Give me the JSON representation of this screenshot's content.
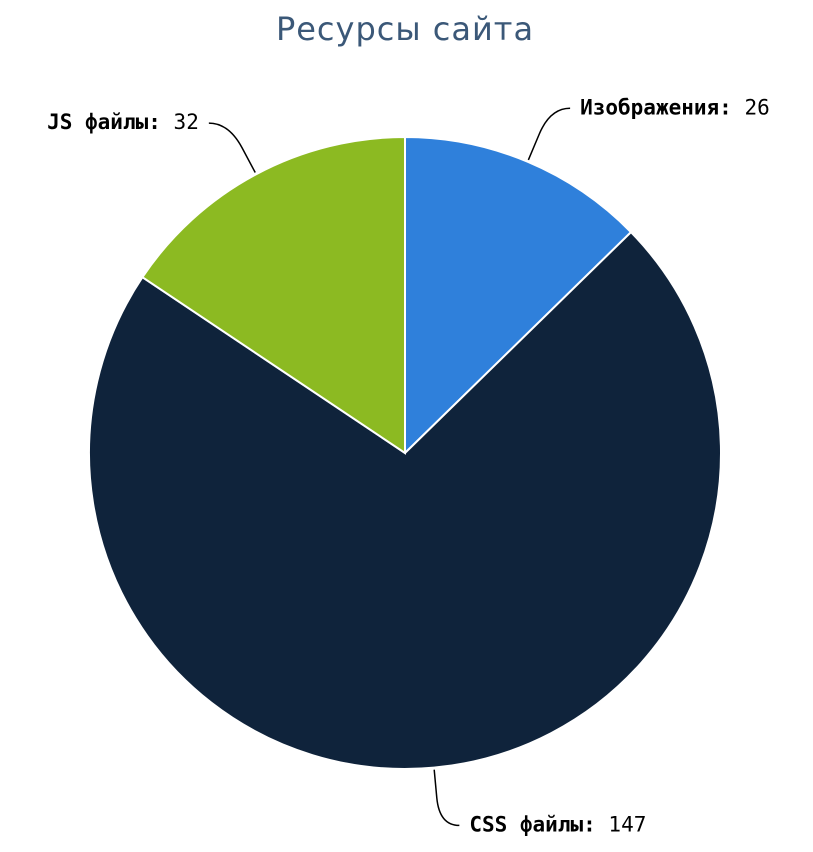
{
  "chart_data": {
    "type": "pie",
    "title": "Ресурсы сайта",
    "categories": [
      "Изображения",
      "CSS файлы",
      "JS файлы"
    ],
    "values": [
      26,
      147,
      32
    ],
    "colors": [
      "#2f80db",
      "#0f233b",
      "#8cba22"
    ]
  }
}
